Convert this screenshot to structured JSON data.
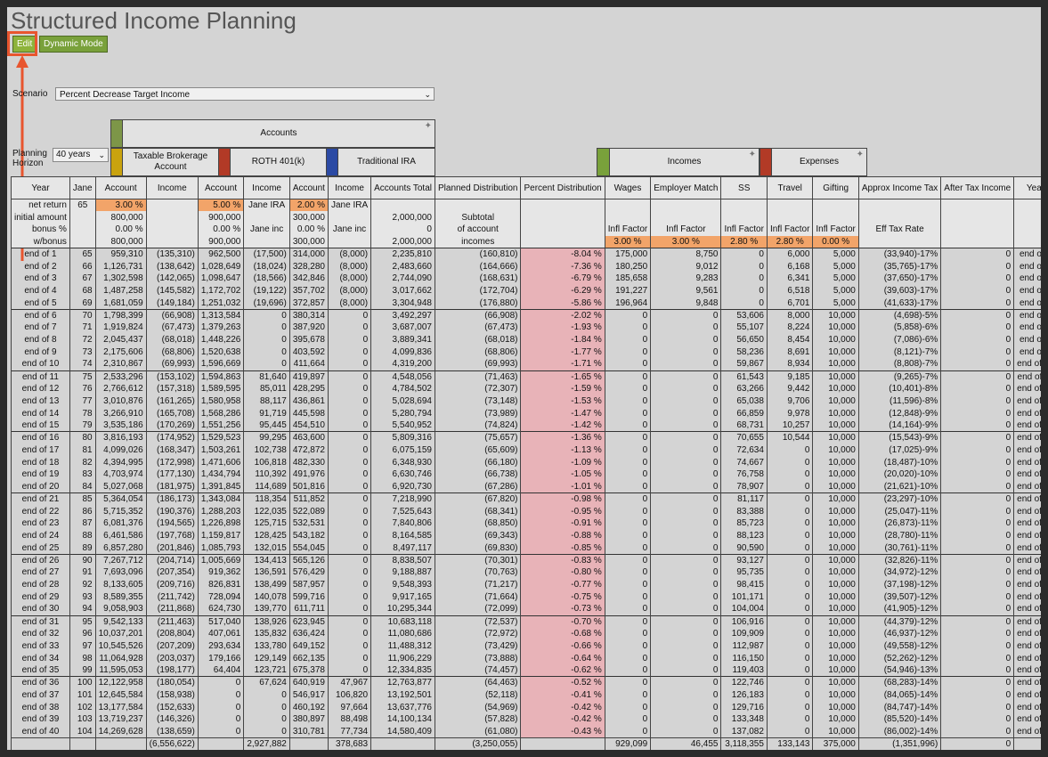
{
  "title": "Structured Income Planning",
  "buttons": {
    "edit": "Edit",
    "dynamic": "Dynamic Mode"
  },
  "scenario": {
    "label": "Scenario",
    "value": "Percent Decrease Target Income"
  },
  "planning": {
    "label": "Planning Horizon",
    "value": "40 years"
  },
  "groups": {
    "accounts": "Accounts",
    "taxable": "Taxable Brokerage Account",
    "roth": "ROTH 401(k)",
    "trad": "Traditional IRA",
    "incomes": "Incomes",
    "expenses": "Expenses"
  },
  "colors": {
    "accounts": "#7d9648",
    "taxable": "#c9a30f",
    "roth": "#b23a26",
    "trad": "#2b4aa4",
    "incomes": "#79a13b",
    "expenses": "#b23a26",
    "input": "#f2a469",
    "pct": "#e8b3b8"
  },
  "columns": [
    "Year",
    "Jane",
    "Account",
    "Income",
    "Account",
    "Income",
    "Account",
    "Income",
    "Accounts Total",
    "Planned Distribution",
    "Percent Distribution",
    "Wages",
    "Employer Match",
    "SS",
    "Travel",
    "Gifting",
    "Approx Income Tax",
    "After Tax Income",
    "Year"
  ],
  "pre_rows": [
    [
      [
        "net return",
        ""
      ],
      [
        "65",
        ""
      ],
      [
        "3.00 %",
        "inp"
      ],
      [
        "",
        ""
      ],
      [
        "5.00 %",
        "inp"
      ],
      [
        "Jane IRA",
        ""
      ],
      [
        "2.00 %",
        "inp"
      ],
      [
        "Jane IRA",
        ""
      ],
      [
        "",
        ""
      ],
      [
        "",
        ""
      ],
      [
        "",
        ""
      ],
      [
        "",
        ""
      ],
      [
        "",
        ""
      ],
      [
        "",
        ""
      ],
      [
        "",
        ""
      ],
      [
        "",
        ""
      ],
      [
        "",
        ""
      ],
      [
        "",
        ""
      ],
      [
        "",
        ""
      ]
    ],
    [
      [
        "initial amount",
        ""
      ],
      [
        "",
        ""
      ],
      [
        "800,000",
        ""
      ],
      [
        "",
        ""
      ],
      [
        "900,000",
        ""
      ],
      [
        "",
        ""
      ],
      [
        "300,000",
        ""
      ],
      [
        "",
        ""
      ],
      [
        "2,000,000",
        ""
      ],
      [
        "Subtotal",
        ""
      ],
      [
        "",
        ""
      ],
      [
        "",
        ""
      ],
      [
        "",
        ""
      ],
      [
        "",
        ""
      ],
      [
        "",
        ""
      ],
      [
        "",
        ""
      ],
      [
        "",
        ""
      ],
      [
        "",
        ""
      ],
      [
        "",
        ""
      ]
    ],
    [
      [
        "bonus %",
        ""
      ],
      [
        "",
        ""
      ],
      [
        "0.00 %",
        ""
      ],
      [
        "",
        ""
      ],
      [
        "0.00 %",
        ""
      ],
      [
        "Jane inc",
        ""
      ],
      [
        "0.00 %",
        ""
      ],
      [
        "Jane inc",
        ""
      ],
      [
        "0",
        ""
      ],
      [
        "of account",
        ""
      ],
      [
        "",
        ""
      ],
      [
        "Infl Factor",
        ""
      ],
      [
        "Infl Factor",
        ""
      ],
      [
        "Infl Factor",
        ""
      ],
      [
        "Infl Factor",
        ""
      ],
      [
        "Infl Factor",
        ""
      ],
      [
        "Eff Tax Rate",
        ""
      ],
      [
        "",
        ""
      ],
      [
        "",
        ""
      ]
    ],
    [
      [
        "w/bonus",
        ""
      ],
      [
        "",
        ""
      ],
      [
        "800,000",
        ""
      ],
      [
        "",
        ""
      ],
      [
        "900,000",
        ""
      ],
      [
        "",
        ""
      ],
      [
        "300,000",
        ""
      ],
      [
        "",
        ""
      ],
      [
        "2,000,000",
        ""
      ],
      [
        "incomes",
        ""
      ],
      [
        "",
        ""
      ],
      [
        "3.00 %",
        "inp"
      ],
      [
        "3.00 %",
        "inp"
      ],
      [
        "2.80 %",
        "inp"
      ],
      [
        "2.80 %",
        "inp"
      ],
      [
        "0.00 %",
        "inp"
      ],
      [
        "",
        ""
      ],
      [
        "",
        ""
      ],
      [
        "",
        ""
      ]
    ]
  ],
  "rows": [
    [
      "end of 1",
      "65",
      "959,310",
      "(135,310)",
      "962,500",
      "(17,500)",
      "314,000",
      "(8,000)",
      "2,235,810",
      "(160,810)",
      "-8.04 %",
      "175,000",
      "8,750",
      "0",
      "6,000",
      "5,000",
      "(33,940)-17%",
      "0",
      "end of 1"
    ],
    [
      "end of 2",
      "66",
      "1,126,731",
      "(138,642)",
      "1,028,649",
      "(18,024)",
      "328,280",
      "(8,000)",
      "2,483,660",
      "(164,666)",
      "-7.36 %",
      "180,250",
      "9,012",
      "0",
      "6,168",
      "5,000",
      "(35,765)-17%",
      "0",
      "end of 2"
    ],
    [
      "end of 3",
      "67",
      "1,302,598",
      "(142,065)",
      "1,098,647",
      "(18,566)",
      "342,846",
      "(8,000)",
      "2,744,090",
      "(168,631)",
      "-6.79 %",
      "185,658",
      "9,283",
      "0",
      "6,341",
      "5,000",
      "(37,650)-17%",
      "0",
      "end of 3"
    ],
    [
      "end of 4",
      "68",
      "1,487,258",
      "(145,582)",
      "1,172,702",
      "(19,122)",
      "357,702",
      "(8,000)",
      "3,017,662",
      "(172,704)",
      "-6.29 %",
      "191,227",
      "9,561",
      "0",
      "6,518",
      "5,000",
      "(39,603)-17%",
      "0",
      "end of 4"
    ],
    [
      "end of 5",
      "69",
      "1,681,059",
      "(149,184)",
      "1,251,032",
      "(19,696)",
      "372,857",
      "(8,000)",
      "3,304,948",
      "(176,880)",
      "-5.86 %",
      "196,964",
      "9,848",
      "0",
      "6,701",
      "5,000",
      "(41,633)-17%",
      "0",
      "end of 5"
    ],
    [
      "end of 6",
      "70",
      "1,798,399",
      "(66,908)",
      "1,313,584",
      "0",
      "380,314",
      "0",
      "3,492,297",
      "(66,908)",
      "-2.02 %",
      "0",
      "0",
      "53,606",
      "8,000",
      "10,000",
      "(4,698)-5%",
      "0",
      "end of 6"
    ],
    [
      "end of 7",
      "71",
      "1,919,824",
      "(67,473)",
      "1,379,263",
      "0",
      "387,920",
      "0",
      "3,687,007",
      "(67,473)",
      "-1.93 %",
      "0",
      "0",
      "55,107",
      "8,224",
      "10,000",
      "(5,858)-6%",
      "0",
      "end of 7"
    ],
    [
      "end of 8",
      "72",
      "2,045,437",
      "(68,018)",
      "1,448,226",
      "0",
      "395,678",
      "0",
      "3,889,341",
      "(68,018)",
      "-1.84 %",
      "0",
      "0",
      "56,650",
      "8,454",
      "10,000",
      "(7,086)-6%",
      "0",
      "end of 8"
    ],
    [
      "end of 9",
      "73",
      "2,175,606",
      "(68,806)",
      "1,520,638",
      "0",
      "403,592",
      "0",
      "4,099,836",
      "(68,806)",
      "-1.77 %",
      "0",
      "0",
      "58,236",
      "8,691",
      "10,000",
      "(8,121)-7%",
      "0",
      "end of 9"
    ],
    [
      "end of 10",
      "74",
      "2,310,867",
      "(69,993)",
      "1,596,669",
      "0",
      "411,664",
      "0",
      "4,319,200",
      "(69,993)",
      "-1.71 %",
      "0",
      "0",
      "59,867",
      "8,934",
      "10,000",
      "(8,808)-7%",
      "0",
      "end of 10"
    ],
    [
      "end of 11",
      "75",
      "2,533,296",
      "(153,102)",
      "1,594,863",
      "81,640",
      "419,897",
      "0",
      "4,548,056",
      "(71,463)",
      "-1.65 %",
      "0",
      "0",
      "61,543",
      "9,185",
      "10,000",
      "(9,265)-7%",
      "0",
      "end of 11"
    ],
    [
      "end of 12",
      "76",
      "2,766,612",
      "(157,318)",
      "1,589,595",
      "85,011",
      "428,295",
      "0",
      "4,784,502",
      "(72,307)",
      "-1.59 %",
      "0",
      "0",
      "63,266",
      "9,442",
      "10,000",
      "(10,401)-8%",
      "0",
      "end of 12"
    ],
    [
      "end of 13",
      "77",
      "3,010,876",
      "(161,265)",
      "1,580,958",
      "88,117",
      "436,861",
      "0",
      "5,028,694",
      "(73,148)",
      "-1.53 %",
      "0",
      "0",
      "65,038",
      "9,706",
      "10,000",
      "(11,596)-8%",
      "0",
      "end of 13"
    ],
    [
      "end of 14",
      "78",
      "3,266,910",
      "(165,708)",
      "1,568,286",
      "91,719",
      "445,598",
      "0",
      "5,280,794",
      "(73,989)",
      "-1.47 %",
      "0",
      "0",
      "66,859",
      "9,978",
      "10,000",
      "(12,848)-9%",
      "0",
      "end of 14"
    ],
    [
      "end of 15",
      "79",
      "3,535,186",
      "(170,269)",
      "1,551,256",
      "95,445",
      "454,510",
      "0",
      "5,540,952",
      "(74,824)",
      "-1.42 %",
      "0",
      "0",
      "68,731",
      "10,257",
      "10,000",
      "(14,164)-9%",
      "0",
      "end of 15"
    ],
    [
      "end of 16",
      "80",
      "3,816,193",
      "(174,952)",
      "1,529,523",
      "99,295",
      "463,600",
      "0",
      "5,809,316",
      "(75,657)",
      "-1.36 %",
      "0",
      "0",
      "70,655",
      "10,544",
      "10,000",
      "(15,543)-9%",
      "0",
      "end of 16"
    ],
    [
      "end of 17",
      "81",
      "4,099,026",
      "(168,347)",
      "1,503,261",
      "102,738",
      "472,872",
      "0",
      "6,075,159",
      "(65,609)",
      "-1.13 %",
      "0",
      "0",
      "72,634",
      "0",
      "10,000",
      "(17,025)-9%",
      "0",
      "end of 17"
    ],
    [
      "end of 18",
      "82",
      "4,394,995",
      "(172,998)",
      "1,471,606",
      "106,818",
      "482,330",
      "0",
      "6,348,930",
      "(66,180)",
      "-1.09 %",
      "0",
      "0",
      "74,667",
      "0",
      "10,000",
      "(18,487)-10%",
      "0",
      "end of 18"
    ],
    [
      "end of 19",
      "83",
      "4,703,974",
      "(177,130)",
      "1,434,794",
      "110,392",
      "491,976",
      "0",
      "6,630,746",
      "(66,738)",
      "-1.05 %",
      "0",
      "0",
      "76,758",
      "0",
      "10,000",
      "(20,020)-10%",
      "0",
      "end of 19"
    ],
    [
      "end of 20",
      "84",
      "5,027,068",
      "(181,975)",
      "1,391,845",
      "114,689",
      "501,816",
      "0",
      "6,920,730",
      "(67,286)",
      "-1.01 %",
      "0",
      "0",
      "78,907",
      "0",
      "10,000",
      "(21,621)-10%",
      "0",
      "end of 20"
    ],
    [
      "end of 21",
      "85",
      "5,364,054",
      "(186,173)",
      "1,343,084",
      "118,354",
      "511,852",
      "0",
      "7,218,990",
      "(67,820)",
      "-0.98 %",
      "0",
      "0",
      "81,117",
      "0",
      "10,000",
      "(23,297)-10%",
      "0",
      "end of 21"
    ],
    [
      "end of 22",
      "86",
      "5,715,352",
      "(190,376)",
      "1,288,203",
      "122,035",
      "522,089",
      "0",
      "7,525,643",
      "(68,341)",
      "-0.95 %",
      "0",
      "0",
      "83,388",
      "0",
      "10,000",
      "(25,047)-11%",
      "0",
      "end of 22"
    ],
    [
      "end of 23",
      "87",
      "6,081,376",
      "(194,565)",
      "1,226,898",
      "125,715",
      "532,531",
      "0",
      "7,840,806",
      "(68,850)",
      "-0.91 %",
      "0",
      "0",
      "85,723",
      "0",
      "10,000",
      "(26,873)-11%",
      "0",
      "end of 23"
    ],
    [
      "end of 24",
      "88",
      "6,461,586",
      "(197,768)",
      "1,159,817",
      "128,425",
      "543,182",
      "0",
      "8,164,585",
      "(69,343)",
      "-0.88 %",
      "0",
      "0",
      "88,123",
      "0",
      "10,000",
      "(28,780)-11%",
      "0",
      "end of 24"
    ],
    [
      "end of 25",
      "89",
      "6,857,280",
      "(201,846)",
      "1,085,793",
      "132,015",
      "554,045",
      "0",
      "8,497,117",
      "(69,830)",
      "-0.85 %",
      "0",
      "0",
      "90,590",
      "0",
      "10,000",
      "(30,761)-11%",
      "0",
      "end of 25"
    ],
    [
      "end of 26",
      "90",
      "7,267,712",
      "(204,714)",
      "1,005,669",
      "134,413",
      "565,126",
      "0",
      "8,838,507",
      "(70,301)",
      "-0.83 %",
      "0",
      "0",
      "93,127",
      "0",
      "10,000",
      "(32,826)-11%",
      "0",
      "end of 26"
    ],
    [
      "end of 27",
      "91",
      "7,693,096",
      "(207,354)",
      "919,362",
      "136,591",
      "576,429",
      "0",
      "9,188,887",
      "(70,763)",
      "-0.80 %",
      "0",
      "0",
      "95,735",
      "0",
      "10,000",
      "(34,972)-12%",
      "0",
      "end of 27"
    ],
    [
      "end of 28",
      "92",
      "8,133,605",
      "(209,716)",
      "826,831",
      "138,499",
      "587,957",
      "0",
      "9,548,393",
      "(71,217)",
      "-0.77 %",
      "0",
      "0",
      "98,415",
      "0",
      "10,000",
      "(37,198)-12%",
      "0",
      "end of 28"
    ],
    [
      "end of 29",
      "93",
      "8,589,355",
      "(211,742)",
      "728,094",
      "140,078",
      "599,716",
      "0",
      "9,917,165",
      "(71,664)",
      "-0.75 %",
      "0",
      "0",
      "101,171",
      "0",
      "10,000",
      "(39,507)-12%",
      "0",
      "end of 29"
    ],
    [
      "end of 30",
      "94",
      "9,058,903",
      "(211,868)",
      "624,730",
      "139,770",
      "611,711",
      "0",
      "10,295,344",
      "(72,099)",
      "-0.73 %",
      "0",
      "0",
      "104,004",
      "0",
      "10,000",
      "(41,905)-12%",
      "0",
      "end of 30"
    ],
    [
      "end of 31",
      "95",
      "9,542,133",
      "(211,463)",
      "517,040",
      "138,926",
      "623,945",
      "0",
      "10,683,118",
      "(72,537)",
      "-0.70 %",
      "0",
      "0",
      "106,916",
      "0",
      "10,000",
      "(44,379)-12%",
      "0",
      "end of 31"
    ],
    [
      "end of 32",
      "96",
      "10,037,201",
      "(208,804)",
      "407,061",
      "135,832",
      "636,424",
      "0",
      "11,080,686",
      "(72,972)",
      "-0.68 %",
      "0",
      "0",
      "109,909",
      "0",
      "10,000",
      "(46,937)-12%",
      "0",
      "end of 32"
    ],
    [
      "end of 33",
      "97",
      "10,545,526",
      "(207,209)",
      "293,634",
      "133,780",
      "649,152",
      "0",
      "11,488,312",
      "(73,429)",
      "-0.66 %",
      "0",
      "0",
      "112,987",
      "0",
      "10,000",
      "(49,558)-12%",
      "0",
      "end of 33"
    ],
    [
      "end of 34",
      "98",
      "11,064,928",
      "(203,037)",
      "179,166",
      "129,149",
      "662,135",
      "0",
      "11,906,229",
      "(73,888)",
      "-0.64 %",
      "0",
      "0",
      "116,150",
      "0",
      "10,000",
      "(52,262)-12%",
      "0",
      "end of 34"
    ],
    [
      "end of 35",
      "99",
      "11,595,053",
      "(198,177)",
      "64,404",
      "123,721",
      "675,378",
      "0",
      "12,334,835",
      "(74,457)",
      "-0.62 %",
      "0",
      "0",
      "119,403",
      "0",
      "10,000",
      "(54,946)-13%",
      "0",
      "end of 35"
    ],
    [
      "end of 36",
      "100",
      "12,122,958",
      "(180,054)",
      "0",
      "67,624",
      "640,919",
      "47,967",
      "12,763,877",
      "(64,463)",
      "-0.52 %",
      "0",
      "0",
      "122,746",
      "0",
      "10,000",
      "(68,283)-14%",
      "0",
      "end of 36"
    ],
    [
      "end of 37",
      "101",
      "12,645,584",
      "(158,938)",
      "0",
      "0",
      "546,917",
      "106,820",
      "13,192,501",
      "(52,118)",
      "-0.41 %",
      "0",
      "0",
      "126,183",
      "0",
      "10,000",
      "(84,065)-14%",
      "0",
      "end of 37"
    ],
    [
      "end of 38",
      "102",
      "13,177,584",
      "(152,633)",
      "0",
      "0",
      "460,192",
      "97,664",
      "13,637,776",
      "(54,969)",
      "-0.42 %",
      "0",
      "0",
      "129,716",
      "0",
      "10,000",
      "(84,747)-14%",
      "0",
      "end of 38"
    ],
    [
      "end of 39",
      "103",
      "13,719,237",
      "(146,326)",
      "0",
      "0",
      "380,897",
      "88,498",
      "14,100,134",
      "(57,828)",
      "-0.42 %",
      "0",
      "0",
      "133,348",
      "0",
      "10,000",
      "(85,520)-14%",
      "0",
      "end of 39"
    ],
    [
      "end of 40",
      "104",
      "14,269,628",
      "(138,659)",
      "0",
      "0",
      "310,781",
      "77,734",
      "14,580,409",
      "(61,080)",
      "-0.43 %",
      "0",
      "0",
      "137,082",
      "0",
      "10,000",
      "(86,002)-14%",
      "0",
      "end of 40"
    ]
  ],
  "totals": [
    "",
    "",
    "",
    "(6,556,622)",
    "",
    "2,927,882",
    "",
    "378,683",
    "",
    "(3,250,055)",
    "",
    "929,099",
    "46,455",
    "3,118,355",
    "133,143",
    "375,000",
    "(1,351,996)",
    "0",
    ""
  ]
}
